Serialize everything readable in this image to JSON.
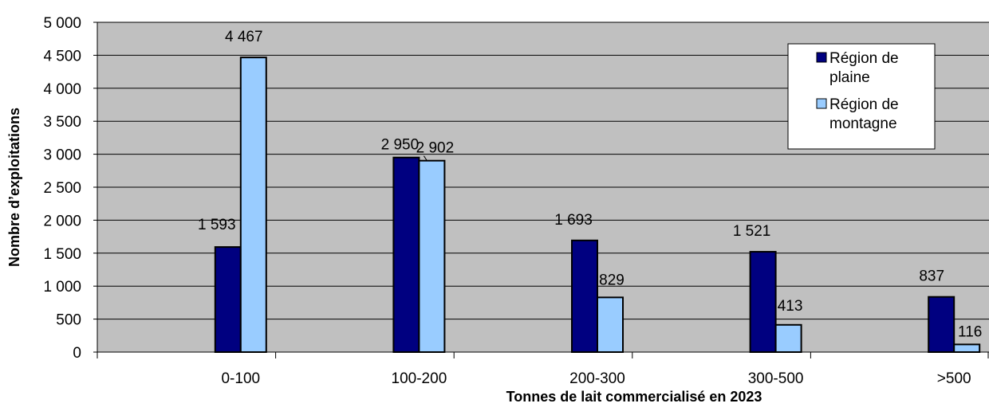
{
  "chart_data": {
    "type": "bar",
    "title": "",
    "xlabel": "Tonnes de lait commercialisé en 2023",
    "ylabel": "Nombre d’exploitations",
    "ylim": [
      0,
      5000
    ],
    "ytick_step": 500,
    "ytick_labels": [
      "0",
      "500",
      "1 000",
      "1 500",
      "2 000",
      "2 500",
      "3 000",
      "3 500",
      "4 000",
      "4 500",
      "5 000"
    ],
    "categories": [
      "0-100",
      "100-200",
      "200-300",
      "300-500",
      ">500"
    ],
    "series": [
      {
        "name": "Région de plaine",
        "color": "#000080",
        "values": [
          1593,
          2950,
          1693,
          1521,
          837
        ],
        "labels": [
          "1 593",
          "2 950",
          "1 693",
          "1 521",
          "837"
        ]
      },
      {
        "name": "Région de montagne",
        "color": "#99ccff",
        "values": [
          4467,
          2902,
          829,
          413,
          116
        ],
        "labels": [
          "4 467",
          "2 902",
          "829",
          "413",
          "116"
        ]
      }
    ],
    "legend_position": "top-right",
    "plot_background": "#c0c0c0",
    "grid": true
  }
}
